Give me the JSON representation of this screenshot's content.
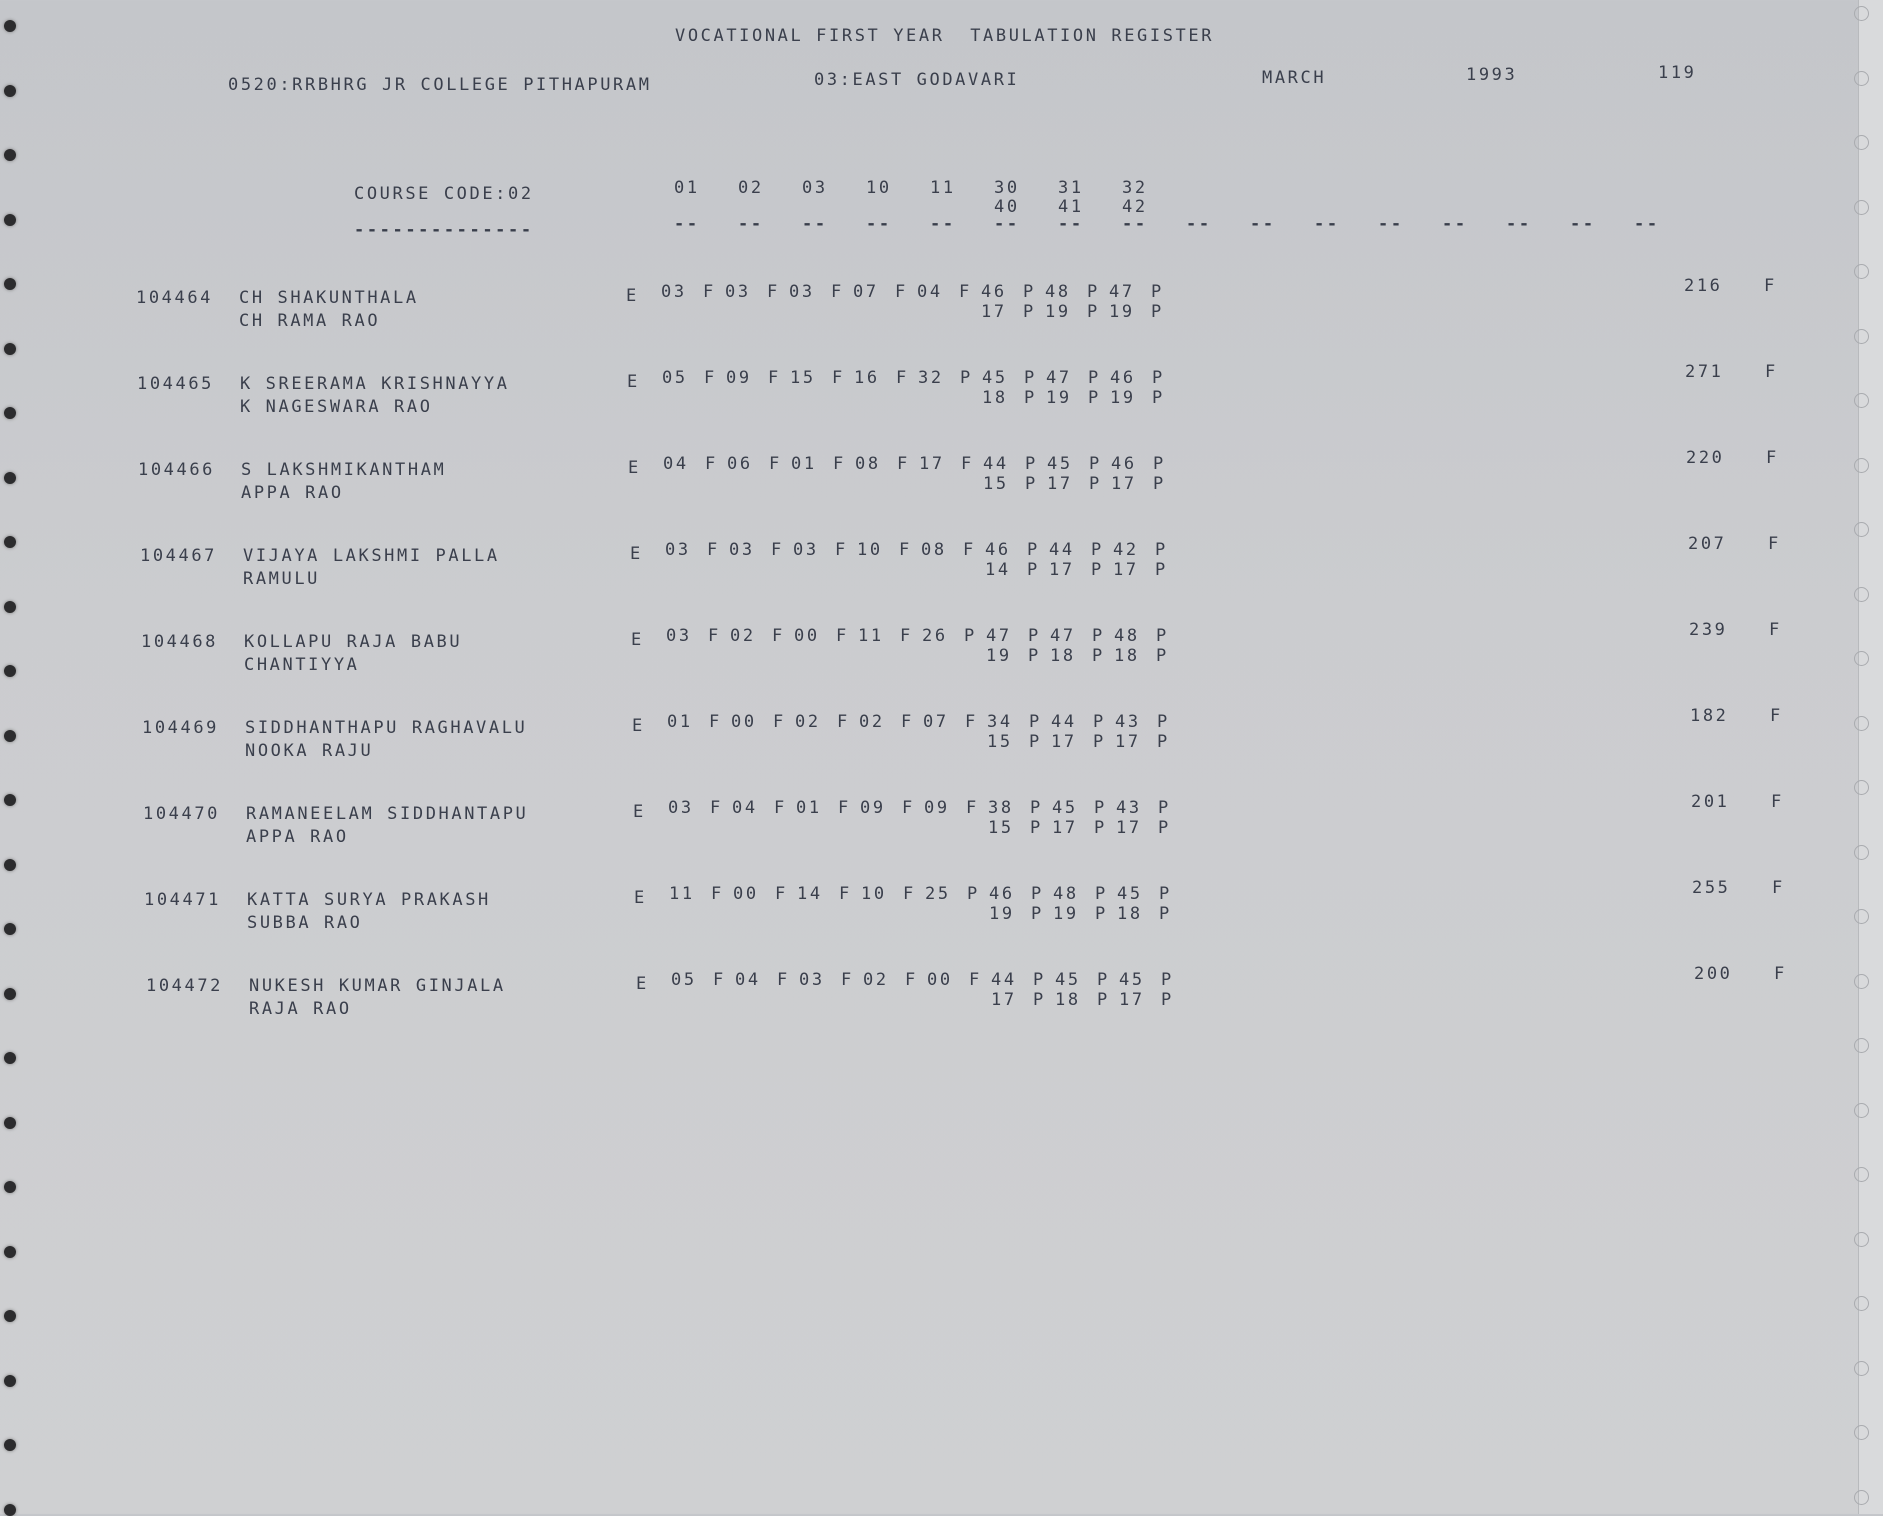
{
  "header": {
    "title": "VOCATIONAL FIRST YEAR  TABULATION REGISTER",
    "college": "0520:RRBHRG JR COLLEGE PITHAPURAM",
    "district": "03:EAST GODAVARI",
    "month": "MARCH",
    "year": "1993",
    "page": "119"
  },
  "columns": {
    "course_code": "COURSE CODE:02",
    "course_underline": "--------------",
    "subjects_row1": [
      "01",
      "02",
      "03",
      "10",
      "11",
      "30",
      "31",
      "32"
    ],
    "subjects_row2": [
      "40",
      "41",
      "42"
    ],
    "dash": "--"
  },
  "rows": [
    {
      "roll": "104464",
      "name": "CH SHAKUNTHALA",
      "father": "CH RAMA RAO",
      "code": "E",
      "marks": [
        [
          "03",
          "F"
        ],
        [
          "03",
          "F"
        ],
        [
          "03",
          "F"
        ],
        [
          "07",
          "F"
        ],
        [
          "04",
          "F"
        ],
        [
          "46",
          "P"
        ],
        [
          "48",
          "P"
        ],
        [
          "47",
          "P"
        ]
      ],
      "marks2": [
        [
          "17",
          "P"
        ],
        [
          "19",
          "P"
        ],
        [
          "19",
          "P"
        ]
      ],
      "total": "216",
      "result": "F"
    },
    {
      "roll": "104465",
      "name": "K SREERAMA KRISHNAYYA",
      "father": "K NAGESWARA RAO",
      "code": "E",
      "marks": [
        [
          "05",
          "F"
        ],
        [
          "09",
          "F"
        ],
        [
          "15",
          "F"
        ],
        [
          "16",
          "F"
        ],
        [
          "32",
          "P"
        ],
        [
          "45",
          "P"
        ],
        [
          "47",
          "P"
        ],
        [
          "46",
          "P"
        ]
      ],
      "marks2": [
        [
          "18",
          "P"
        ],
        [
          "19",
          "P"
        ],
        [
          "19",
          "P"
        ]
      ],
      "total": "271",
      "result": "F"
    },
    {
      "roll": "104466",
      "name": "S LAKSHMIKANTHAM",
      "father": "APPA RAO",
      "code": "E",
      "marks": [
        [
          "04",
          "F"
        ],
        [
          "06",
          "F"
        ],
        [
          "01",
          "F"
        ],
        [
          "08",
          "F"
        ],
        [
          "17",
          "F"
        ],
        [
          "44",
          "P"
        ],
        [
          "45",
          "P"
        ],
        [
          "46",
          "P"
        ]
      ],
      "marks2": [
        [
          "15",
          "P"
        ],
        [
          "17",
          "P"
        ],
        [
          "17",
          "P"
        ]
      ],
      "total": "220",
      "result": "F"
    },
    {
      "roll": "104467",
      "name": "VIJAYA LAKSHMI PALLA",
      "father": "RAMULU",
      "code": "E",
      "marks": [
        [
          "03",
          "F"
        ],
        [
          "03",
          "F"
        ],
        [
          "03",
          "F"
        ],
        [
          "10",
          "F"
        ],
        [
          "08",
          "F"
        ],
        [
          "46",
          "P"
        ],
        [
          "44",
          "P"
        ],
        [
          "42",
          "P"
        ]
      ],
      "marks2": [
        [
          "14",
          "P"
        ],
        [
          "17",
          "P"
        ],
        [
          "17",
          "P"
        ]
      ],
      "total": "207",
      "result": "F"
    },
    {
      "roll": "104468",
      "name": "KOLLAPU RAJA BABU",
      "father": "CHANTIYYA",
      "code": "E",
      "marks": [
        [
          "03",
          "F"
        ],
        [
          "02",
          "F"
        ],
        [
          "00",
          "F"
        ],
        [
          "11",
          "F"
        ],
        [
          "26",
          "P"
        ],
        [
          "47",
          "P"
        ],
        [
          "47",
          "P"
        ],
        [
          "48",
          "P"
        ]
      ],
      "marks2": [
        [
          "19",
          "P"
        ],
        [
          "18",
          "P"
        ],
        [
          "18",
          "P"
        ]
      ],
      "total": "239",
      "result": "F"
    },
    {
      "roll": "104469",
      "name": "SIDDHANTHAPU RAGHAVALU",
      "father": "NOOKA RAJU",
      "code": "E",
      "marks": [
        [
          "01",
          "F"
        ],
        [
          "00",
          "F"
        ],
        [
          "02",
          "F"
        ],
        [
          "02",
          "F"
        ],
        [
          "07",
          "F"
        ],
        [
          "34",
          "P"
        ],
        [
          "44",
          "P"
        ],
        [
          "43",
          "P"
        ]
      ],
      "marks2": [
        [
          "15",
          "P"
        ],
        [
          "17",
          "P"
        ],
        [
          "17",
          "P"
        ]
      ],
      "total": "182",
      "result": "F"
    },
    {
      "roll": "104470",
      "name": "RAMANEELAM SIDDHANTAPU",
      "father": "APPA RAO",
      "code": "E",
      "marks": [
        [
          "03",
          "F"
        ],
        [
          "04",
          "F"
        ],
        [
          "01",
          "F"
        ],
        [
          "09",
          "F"
        ],
        [
          "09",
          "F"
        ],
        [
          "38",
          "P"
        ],
        [
          "45",
          "P"
        ],
        [
          "43",
          "P"
        ]
      ],
      "marks2": [
        [
          "15",
          "P"
        ],
        [
          "17",
          "P"
        ],
        [
          "17",
          "P"
        ]
      ],
      "total": "201",
      "result": "F"
    },
    {
      "roll": "104471",
      "name": "KATTA SURYA PRAKASH",
      "father": "SUBBA RAO",
      "code": "E",
      "marks": [
        [
          "11",
          "F"
        ],
        [
          "00",
          "F"
        ],
        [
          "14",
          "F"
        ],
        [
          "10",
          "F"
        ],
        [
          "25",
          "P"
        ],
        [
          "46",
          "P"
        ],
        [
          "48",
          "P"
        ],
        [
          "45",
          "P"
        ]
      ],
      "marks2": [
        [
          "19",
          "P"
        ],
        [
          "19",
          "P"
        ],
        [
          "18",
          "P"
        ]
      ],
      "total": "255",
      "result": "F"
    },
    {
      "roll": "104472",
      "name": "NUKESH KUMAR GINJALA",
      "father": "RAJA RAO",
      "code": "E",
      "marks": [
        [
          "05",
          "F"
        ],
        [
          "04",
          "F"
        ],
        [
          "03",
          "F"
        ],
        [
          "02",
          "F"
        ],
        [
          "00",
          "F"
        ],
        [
          "44",
          "P"
        ],
        [
          "45",
          "P"
        ],
        [
          "45",
          "P"
        ]
      ],
      "marks2": [
        [
          "17",
          "P"
        ],
        [
          "18",
          "P"
        ],
        [
          "17",
          "P"
        ]
      ],
      "total": "200",
      "result": "F"
    }
  ]
}
